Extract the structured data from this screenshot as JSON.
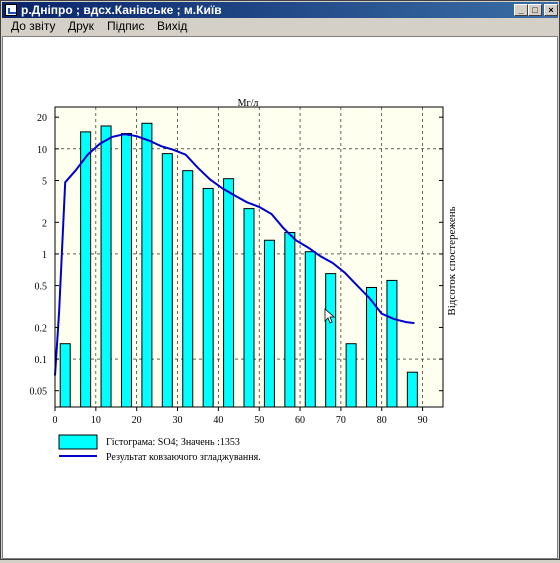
{
  "window": {
    "title": "р.Дніпро ; вдсх.Канівське ; м.Київ",
    "controls": {
      "minimize": "_",
      "maximize": "□",
      "close": "×"
    }
  },
  "menu": [
    "До звіту",
    "Друк",
    "Підпис",
    "Вихід"
  ],
  "chart_data": {
    "type": "bar",
    "title": "Мг/л",
    "xlabel": "",
    "ylabel": "Відсоток спостережень",
    "y_scale": "log",
    "x_range": [
      0,
      95
    ],
    "y_range": [
      0.035,
      25
    ],
    "x_ticks": [
      "0",
      "10",
      "20",
      "30",
      "40",
      "50",
      "60",
      "70",
      "80",
      "90"
    ],
    "y_ticks": [
      "0.05",
      "0.1",
      "0.2",
      "0.5",
      "1",
      "2",
      "5",
      "10",
      "20"
    ],
    "grid": true,
    "legend_position": "bottom",
    "series": [
      {
        "name": "Гістограма: SO4;  Значень :1353",
        "kind": "bar",
        "color": "#00ffff",
        "x": [
          2.5,
          7.5,
          12.5,
          17.5,
          22.5,
          27.5,
          32.5,
          37.5,
          42.5,
          47.5,
          52.5,
          57.5,
          62.5,
          67.5,
          72.5,
          77.5,
          82.5,
          87.5
        ],
        "values": [
          0.14,
          14.5,
          16.5,
          14,
          17.5,
          9,
          6.2,
          4.2,
          5.2,
          2.7,
          1.35,
          1.6,
          1.05,
          0.65,
          0.14,
          0.48,
          0.56,
          0.075
        ]
      },
      {
        "name": "Результат ковзаючого згладжування.",
        "kind": "line",
        "color": "#0000cc",
        "x": [
          0,
          1,
          2.5,
          5,
          8,
          11,
          14,
          17,
          20,
          23,
          26,
          29,
          32,
          35,
          38,
          41,
          44,
          47,
          50,
          53,
          56,
          59,
          62,
          65,
          68,
          71,
          74,
          77,
          80,
          83,
          86,
          88
        ],
        "values": [
          0.07,
          0.28,
          4.8,
          6.2,
          8.8,
          11.2,
          13,
          13.8,
          13.2,
          12,
          10.6,
          9.8,
          8.8,
          6.6,
          5.1,
          4.2,
          3.6,
          3.1,
          2.8,
          2.4,
          1.75,
          1.35,
          1.15,
          0.95,
          0.82,
          0.66,
          0.5,
          0.38,
          0.27,
          0.24,
          0.225,
          0.22
        ]
      }
    ]
  }
}
